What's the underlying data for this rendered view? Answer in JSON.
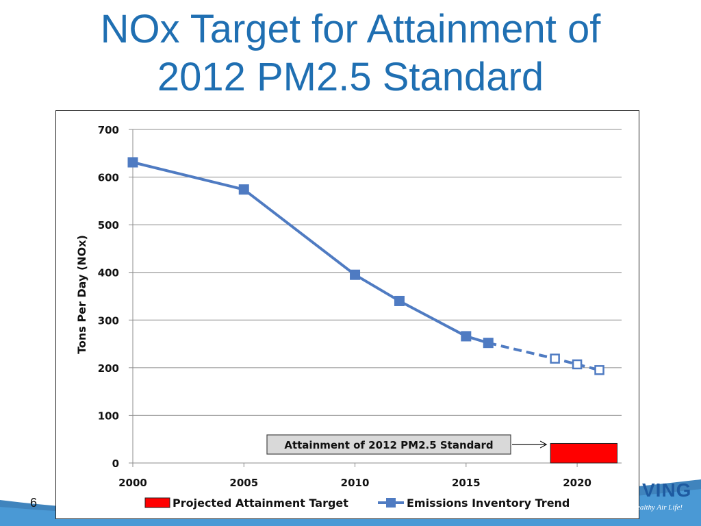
{
  "slide": {
    "title_line1": "NOx Target for Attainment of",
    "title_line2": "2012 PM2.5 Standard",
    "page_number": "6",
    "logo_text": "VING",
    "tagline": "ealthy Air Life!"
  },
  "colors": {
    "title": "#1f6fb2",
    "series": "#4f7bc2",
    "target": "#ff0000",
    "callout_bg": "#d9d9d9"
  },
  "chart_data": {
    "type": "line",
    "ylabel": "Tons Per Day (NOx)",
    "xlim": [
      2000,
      2022
    ],
    "ylim": [
      0,
      700
    ],
    "xticks": [
      2000,
      2005,
      2010,
      2015,
      2020
    ],
    "yticks": [
      0,
      100,
      200,
      300,
      400,
      500,
      600,
      700
    ],
    "grid": true,
    "legend_position": "bottom",
    "series": [
      {
        "name": "Emissions Inventory Trend",
        "marker": "square",
        "points": [
          {
            "x": 2000,
            "y": 631
          },
          {
            "x": 2005,
            "y": 574
          },
          {
            "x": 2010,
            "y": 395
          },
          {
            "x": 2012,
            "y": 340
          },
          {
            "x": 2015,
            "y": 266
          },
          {
            "x": 2016,
            "y": 252
          }
        ],
        "projected_points": [
          {
            "x": 2016,
            "y": 252
          },
          {
            "x": 2019,
            "y": 219
          },
          {
            "x": 2020,
            "y": 207
          },
          {
            "x": 2021,
            "y": 195
          }
        ]
      }
    ],
    "target": {
      "name": "Projected Attainment Target",
      "x_start": 2018.8,
      "x_end": 2021.8,
      "y_start": 0,
      "y_end": 41
    },
    "annotation": {
      "text": "Attainment of 2012 PM2.5 Standard"
    }
  }
}
